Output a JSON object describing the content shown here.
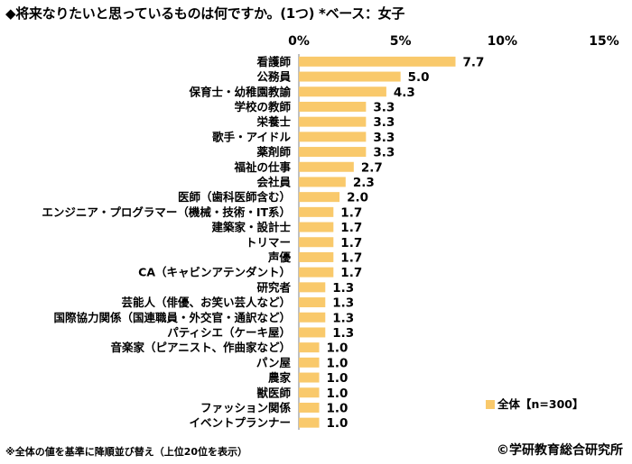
{
  "title": "◆将来なりたいと思っているものは何ですか。(1つ) *ベース：女子",
  "footnote": "※全体の値を基準に降順並び替え（上位20位を表示）",
  "copyright": "©学研教育総合研究所",
  "colors": {
    "bar": "#F9C96B",
    "axis": "#808080"
  },
  "chart_data": {
    "type": "bar",
    "orientation": "horizontal",
    "title": "◆将来なりたいと思っているものは何ですか。(1つ) *ベース：女子",
    "xlim": [
      0,
      15
    ],
    "ticks": [
      0,
      5,
      10,
      15
    ],
    "tick_labels": [
      "0%",
      "5%",
      "10%",
      "15%"
    ],
    "legend": {
      "position": "bottom-right",
      "entries": [
        "全体【n=300】"
      ]
    },
    "categories": [
      "看護師",
      "公務員",
      "保育士・幼稚園教諭",
      "学校の教師",
      "栄養士",
      "歌手・アイドル",
      "薬剤師",
      "福祉の仕事",
      "会社員",
      "医師（歯科医師含む）",
      "エンジニア・プログラマー（機械・技術・IT系）",
      "建築家・設計士",
      "トリマー",
      "声優",
      "CA（キャビンアテンダント）",
      "研究者",
      "芸能人（俳優、お笑い芸人など）",
      "国際協力関係（国連職員・外交官・通訳など）",
      "パティシエ（ケーキ屋）",
      "音楽家（ピアニスト、作曲家など）",
      "パン屋",
      "農家",
      "獣医師",
      "ファッション関係",
      "イベントプランナー"
    ],
    "series": [
      {
        "name": "全体【n=300】",
        "values": [
          7.7,
          5.0,
          4.3,
          3.3,
          3.3,
          3.3,
          3.3,
          2.7,
          2.3,
          2.0,
          1.7,
          1.7,
          1.7,
          1.7,
          1.7,
          1.3,
          1.3,
          1.3,
          1.3,
          1.0,
          1.0,
          1.0,
          1.0,
          1.0,
          1.0
        ]
      }
    ],
    "value_labels": [
      "7.7",
      "5.0",
      "4.3",
      "3.3",
      "3.3",
      "3.3",
      "3.3",
      "2.7",
      "2.3",
      "2.0",
      "1.7",
      "1.7",
      "1.7",
      "1.7",
      "1.7",
      "1.3",
      "1.3",
      "1.3",
      "1.3",
      "1.0",
      "1.0",
      "1.0",
      "1.0",
      "1.0",
      "1.0"
    ]
  }
}
